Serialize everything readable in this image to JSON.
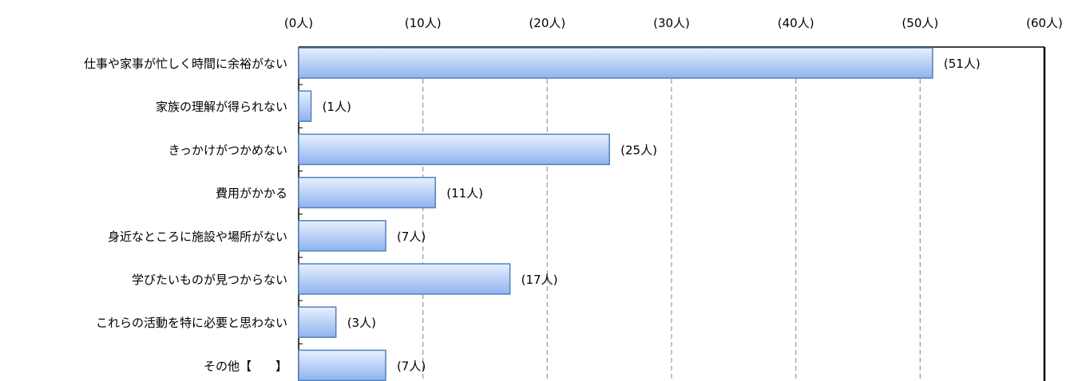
{
  "chart_data": {
    "type": "bar",
    "orientation": "horizontal",
    "categories": [
      "仕事や家事が忙しく時間に余裕がない",
      "家族の理解が得られない",
      "きっかけがつかめない",
      "費用がかかる",
      "身近なところに施設や場所がない",
      "学びたいものが見つからない",
      "これらの活動を特に必要と思わない",
      "その他【　　】"
    ],
    "values": [
      51,
      1,
      25,
      11,
      7,
      17,
      3,
      7
    ],
    "data_labels": [
      "(51人)",
      "(1人)",
      "(25人)",
      "(11人)",
      "(7人)",
      "(17人)",
      "(3人)",
      "(7人)"
    ],
    "x_ticks": [
      0,
      10,
      20,
      30,
      40,
      50,
      60
    ],
    "x_tick_labels": [
      "(0人)",
      "(10人)",
      "(20人)",
      "(30人)",
      "(40人)",
      "(50人)",
      "(60人)"
    ],
    "xlim": [
      0,
      60
    ],
    "axis_position": "top",
    "grid": "vertical-dashed",
    "title": "",
    "xlabel": "",
    "ylabel": "",
    "colors": {
      "bar_fill_light": "#e8f0ff",
      "bar_fill_dark": "#8fb3ee",
      "bar_stroke": "#4f81bd",
      "grid": "#9a9a9a"
    }
  }
}
